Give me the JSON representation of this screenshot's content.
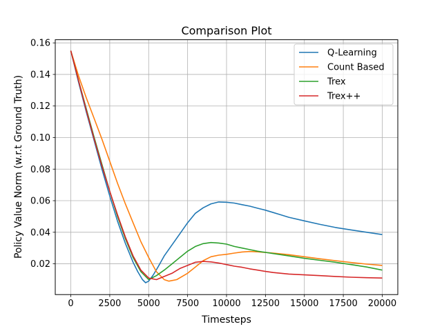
{
  "chart_data": {
    "type": "line",
    "title": "Comparison Plot",
    "xlabel": "Timesteps",
    "ylabel": "Policy Value Norm (w.r.t Ground Truth)",
    "xlim": [
      -1000,
      21000
    ],
    "ylim": [
      0.0005,
      0.162
    ],
    "xticks": [
      0,
      2500,
      5000,
      7500,
      10000,
      12500,
      15000,
      17500,
      20000
    ],
    "xtick_labels": [
      "0",
      "2500",
      "5000",
      "7500",
      "10000",
      "12500",
      "15000",
      "17500",
      "20000"
    ],
    "yticks": [
      0.02,
      0.04,
      0.06,
      0.08,
      0.1,
      0.12,
      0.14,
      0.16
    ],
    "ytick_labels": [
      "0.02",
      "0.04",
      "0.06",
      "0.08",
      "0.10",
      "0.12",
      "0.14",
      "0.16"
    ],
    "grid": true,
    "legend_position": "top-right",
    "series": [
      {
        "name": "Q-Learning",
        "color": "#1f77b4",
        "x": [
          0,
          500,
          1000,
          1500,
          2000,
          2500,
          3000,
          3500,
          4000,
          4300,
          4600,
          4800,
          5000,
          5300,
          5600,
          6000,
          6500,
          7000,
          7500,
          8000,
          8500,
          9000,
          9500,
          10000,
          10500,
          11000,
          11500,
          12000,
          12500,
          13000,
          13500,
          14000,
          15000,
          16000,
          17000,
          18000,
          19000,
          20000
        ],
        "y": [
          0.155,
          0.135,
          0.116,
          0.098,
          0.08,
          0.063,
          0.047,
          0.033,
          0.021,
          0.015,
          0.01,
          0.008,
          0.009,
          0.013,
          0.018,
          0.025,
          0.032,
          0.039,
          0.046,
          0.052,
          0.0555,
          0.058,
          0.0592,
          0.059,
          0.0585,
          0.0575,
          0.0565,
          0.0552,
          0.054,
          0.0525,
          0.051,
          0.0495,
          0.0472,
          0.045,
          0.043,
          0.0415,
          0.04,
          0.0385
        ]
      },
      {
        "name": "Count Based",
        "color": "#ff7f0e",
        "x": [
          0,
          500,
          1000,
          1500,
          2000,
          2500,
          3000,
          3500,
          4000,
          4500,
          5000,
          5500,
          6000,
          6300,
          6800,
          7500,
          8000,
          8500,
          9000,
          9500,
          10000,
          10500,
          11000,
          11500,
          12000,
          13000,
          14000,
          15000,
          16000,
          17000,
          18000,
          19000,
          20000
        ],
        "y": [
          0.155,
          0.139,
          0.125,
          0.112,
          0.099,
          0.085,
          0.071,
          0.058,
          0.046,
          0.034,
          0.024,
          0.015,
          0.01,
          0.009,
          0.01,
          0.014,
          0.018,
          0.022,
          0.0245,
          0.0255,
          0.026,
          0.0268,
          0.0275,
          0.0278,
          0.0276,
          0.0268,
          0.0258,
          0.0245,
          0.0232,
          0.022,
          0.0208,
          0.0198,
          0.019
        ]
      },
      {
        "name": "Trex",
        "color": "#2ca02c",
        "x": [
          0,
          500,
          1000,
          1500,
          2000,
          2500,
          3000,
          3500,
          4000,
          4500,
          5000,
          5500,
          6000,
          6500,
          7000,
          7500,
          8000,
          8500,
          9000,
          9500,
          10000,
          10500,
          11000,
          11500,
          12000,
          13000,
          14000,
          15000,
          16000,
          17000,
          18000,
          19000,
          20000
        ],
        "y": [
          0.155,
          0.136,
          0.118,
          0.1,
          0.083,
          0.066,
          0.05,
          0.036,
          0.024,
          0.015,
          0.01,
          0.0125,
          0.016,
          0.02,
          0.024,
          0.028,
          0.031,
          0.0328,
          0.0335,
          0.0332,
          0.0325,
          0.031,
          0.03,
          0.029,
          0.028,
          0.0265,
          0.025,
          0.0235,
          0.0222,
          0.021,
          0.0195,
          0.018,
          0.016
        ]
      },
      {
        "name": "Trex++",
        "color": "#d62728",
        "x": [
          0,
          500,
          1000,
          1500,
          2000,
          2500,
          3000,
          3500,
          4000,
          4500,
          5000,
          5500,
          6000,
          6500,
          7000,
          7500,
          8000,
          8500,
          9000,
          9500,
          10000,
          10500,
          11000,
          11500,
          12000,
          12500,
          13000,
          14000,
          15000,
          16000,
          17000,
          18000,
          19000,
          20000
        ],
        "y": [
          0.155,
          0.136,
          0.117,
          0.099,
          0.082,
          0.066,
          0.051,
          0.037,
          0.025,
          0.016,
          0.011,
          0.01,
          0.012,
          0.014,
          0.017,
          0.019,
          0.021,
          0.0215,
          0.0212,
          0.0205,
          0.0195,
          0.0185,
          0.0178,
          0.0168,
          0.016,
          0.0152,
          0.0145,
          0.0135,
          0.013,
          0.0125,
          0.012,
          0.0115,
          0.0112,
          0.011
        ]
      }
    ]
  }
}
